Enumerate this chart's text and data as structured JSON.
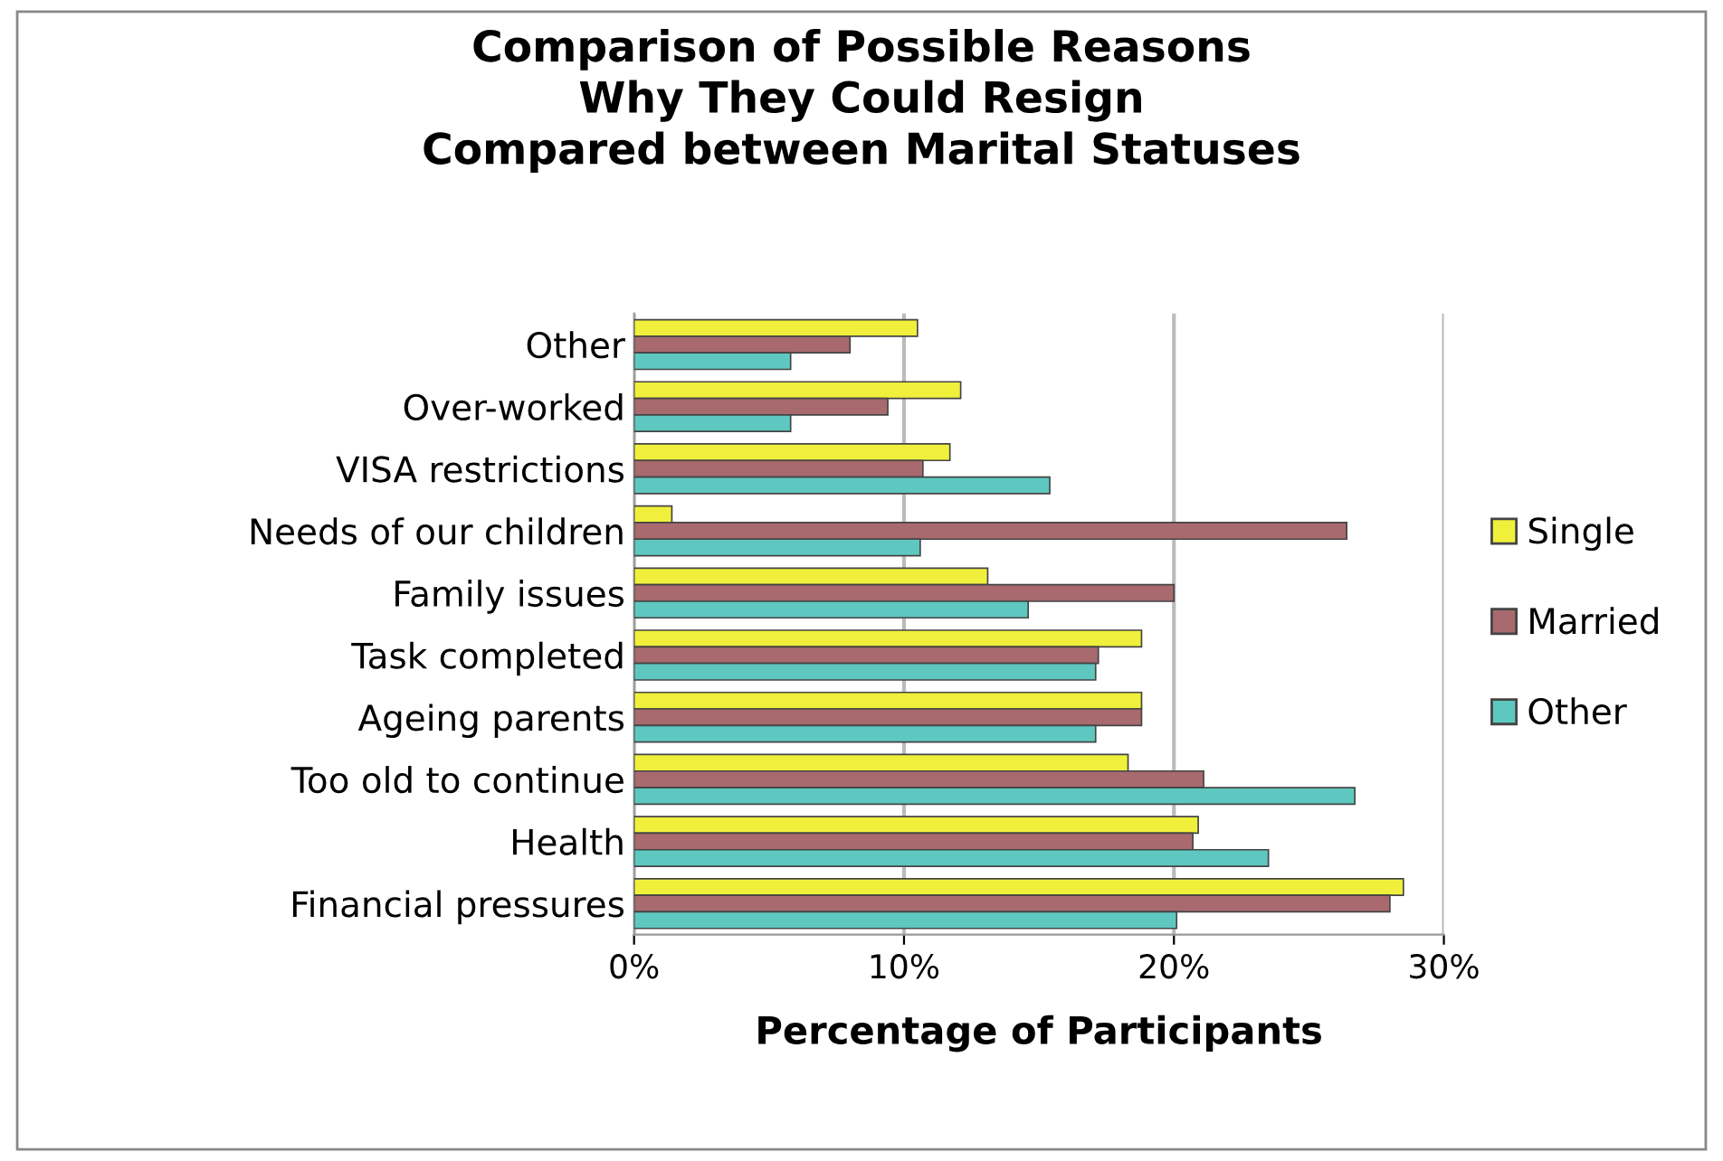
{
  "chart_data": {
    "type": "bar",
    "orientation": "horizontal",
    "title": "Comparison of Possible Reasons\nWhy They Could Resign\nCompared between Marital Statuses",
    "xlabel": "Percentage of Participants",
    "categories": [
      "Other",
      "Over-worked",
      "VISA restrictions",
      "Needs of our children",
      "Family issues",
      "Task completed",
      "Ageing parents",
      "Too old to continue",
      "Health",
      "Financial pressures"
    ],
    "series": [
      {
        "name": "Single",
        "color": "#f0f03c",
        "values": [
          10.5,
          12.1,
          11.7,
          1.4,
          13.1,
          18.8,
          18.8,
          18.3,
          20.9,
          28.5
        ]
      },
      {
        "name": "Married",
        "color": "#a86a6e",
        "values": [
          8.0,
          9.4,
          10.7,
          26.4,
          20.0,
          17.2,
          18.8,
          21.1,
          20.7,
          28.0
        ]
      },
      {
        "name": "Other",
        "color": "#5ec8c0",
        "values": [
          5.8,
          5.8,
          15.4,
          10.6,
          14.6,
          17.1,
          17.1,
          26.7,
          23.5,
          20.1
        ]
      }
    ],
    "xlim": [
      0,
      30
    ],
    "xticks": [
      {
        "value": 0,
        "label": "0%"
      },
      {
        "value": 10,
        "label": "10%"
      },
      {
        "value": 20,
        "label": "20%"
      },
      {
        "value": 30,
        "label": "30%"
      }
    ],
    "grid": "x",
    "legend": "right"
  }
}
